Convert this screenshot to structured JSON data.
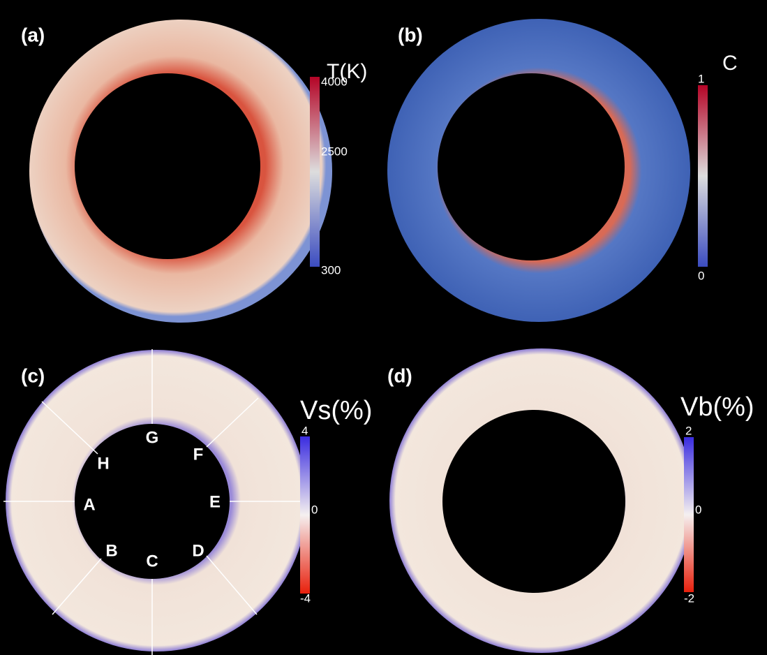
{
  "panels": [
    {
      "label": "(a)",
      "colorbar": {
        "title": "T(K)",
        "ticks": [
          "4000",
          "2500",
          "300"
        ]
      }
    },
    {
      "label": "(b)",
      "colorbar": {
        "title": "C",
        "ticks": [
          "1",
          "0"
        ]
      }
    },
    {
      "label": "(c)",
      "colorbar": {
        "title": "Vs(%)",
        "ticks": [
          "4",
          "0",
          "-4"
        ]
      },
      "markers": [
        "A",
        "B",
        "C",
        "D",
        "E",
        "F",
        "G",
        "H"
      ]
    },
    {
      "label": "(d)",
      "colorbar": {
        "title": "Vb(%)",
        "ticks": [
          "2",
          "0",
          "-2"
        ]
      }
    }
  ]
}
